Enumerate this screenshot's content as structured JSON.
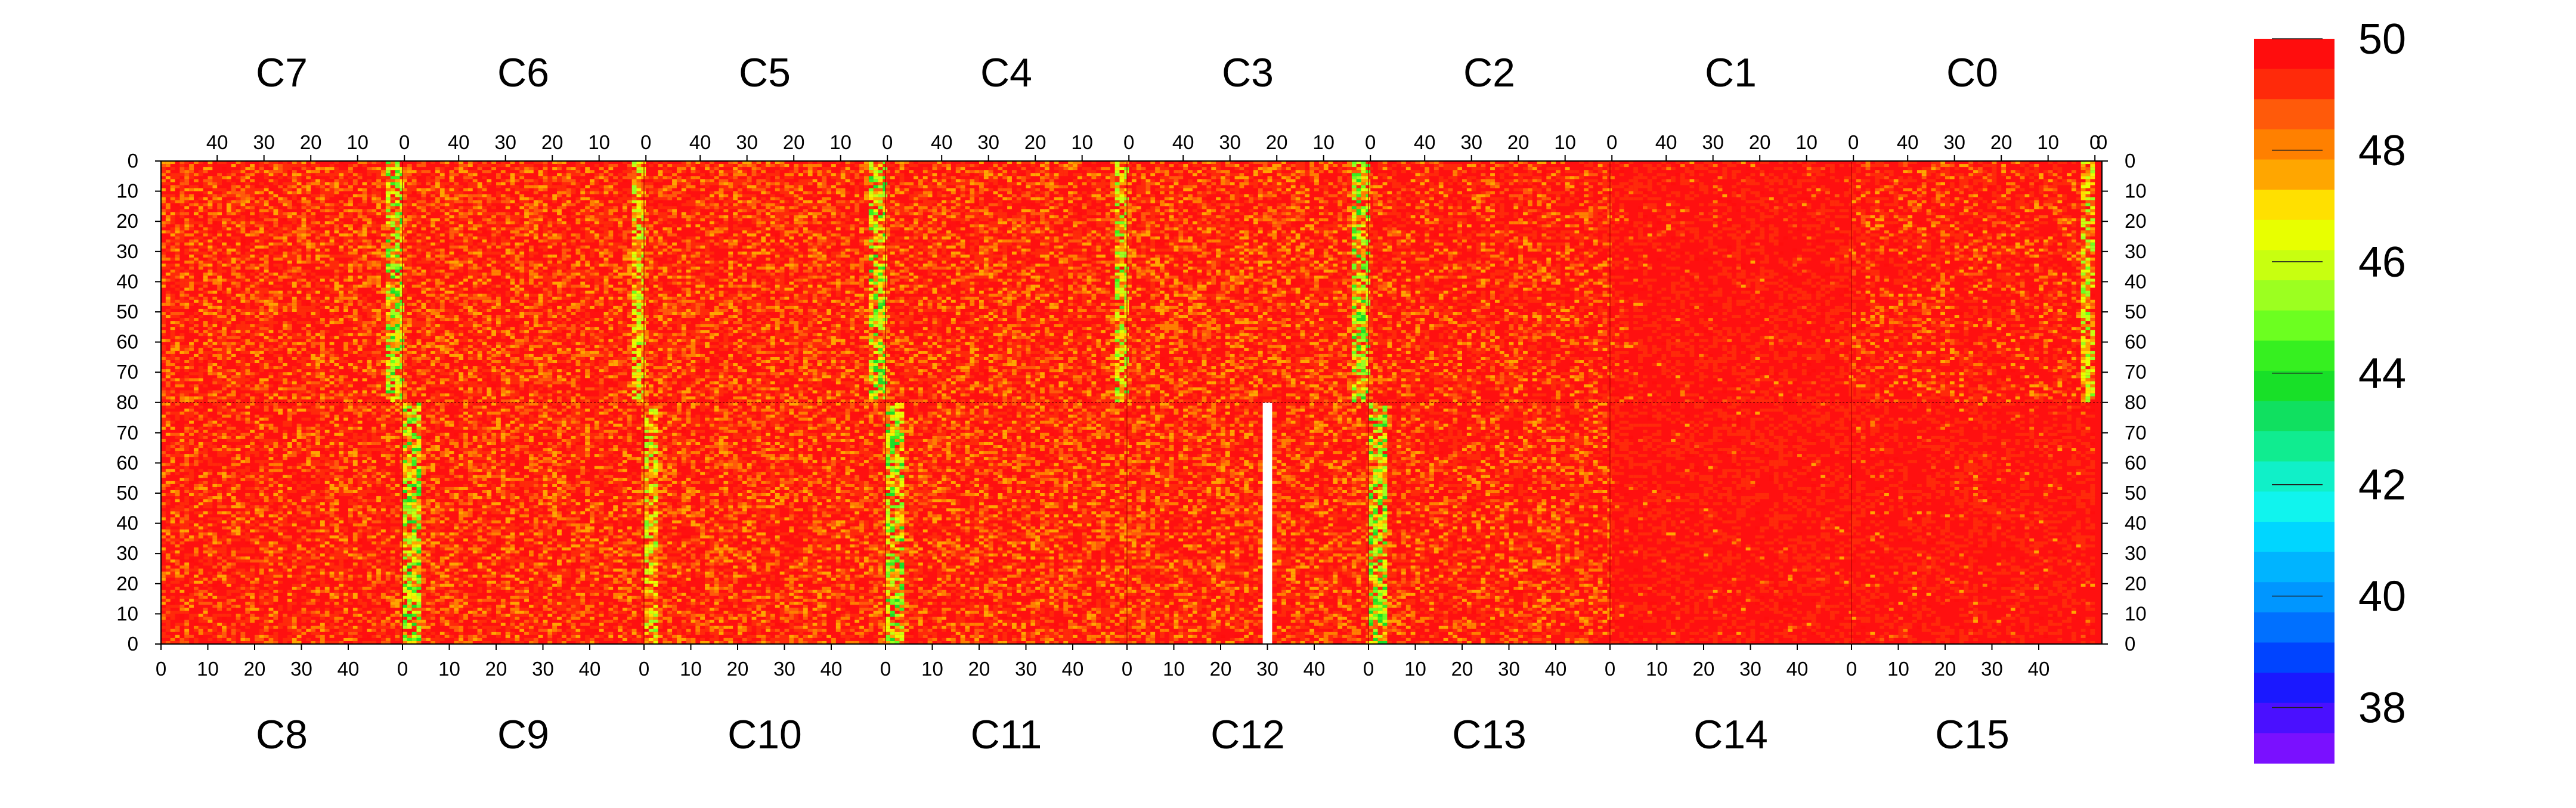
{
  "chart_data": {
    "type": "heatmap",
    "title": "",
    "top_row_chips": [
      "C7",
      "C6",
      "C5",
      "C4",
      "C3",
      "C2",
      "C1",
      "C0"
    ],
    "bottom_row_chips": [
      "C8",
      "C9",
      "C10",
      "C11",
      "C12",
      "C13",
      "C14",
      "C15"
    ],
    "columns_per_chip": 52,
    "rows_per_half": 80,
    "top_x_ticks": [
      "40",
      "30",
      "20",
      "10",
      "0"
    ],
    "bottom_x_ticks": [
      "0",
      "10",
      "20",
      "30",
      "40"
    ],
    "y_ticks_top": [
      "0",
      "10",
      "20",
      "30",
      "40",
      "50",
      "60",
      "70",
      "80"
    ],
    "y_ticks_bottom": [
      "70",
      "60",
      "50",
      "40",
      "30",
      "20",
      "10",
      "0"
    ],
    "zrange": [
      37,
      50
    ],
    "colorbar_ticks": [
      "50",
      "48",
      "46",
      "44",
      "42",
      "40",
      "38"
    ],
    "colorbar_colors": [
      "#ff0d0d",
      "#ff2a0a",
      "#ff5a0a",
      "#ff8000",
      "#ffa600",
      "#ffe000",
      "#e8ff00",
      "#c8ff10",
      "#9cff20",
      "#6cff20",
      "#36f020",
      "#18e028",
      "#10e060",
      "#10ec90",
      "#10f0c8",
      "#10f4ee",
      "#00d6ff",
      "#00b4ff",
      "#0096ff",
      "#0070ff",
      "#0044ff",
      "#1a18ff",
      "#4a10ff",
      "#7a10ff"
    ],
    "chip_summary": [
      {
        "chip": "C7",
        "typical_value": 49.2,
        "low_band_columns": "0-3",
        "low_band_value": 46.8
      },
      {
        "chip": "C6",
        "typical_value": 49.1,
        "low_band_columns": "0-2",
        "low_band_value": 47.5
      },
      {
        "chip": "C5",
        "typical_value": 49.1,
        "low_band_columns": "0-3",
        "low_band_value": 46.8
      },
      {
        "chip": "C4",
        "typical_value": 49.2,
        "low_band_columns": "0-2",
        "low_band_value": 47.2
      },
      {
        "chip": "C3",
        "typical_value": 49.1,
        "low_band_columns": "0-3",
        "low_band_value": 46.8
      },
      {
        "chip": "C2",
        "typical_value": 49.4,
        "low_band_columns": "",
        "low_band_value": 49.4
      },
      {
        "chip": "C1",
        "typical_value": 49.9,
        "low_band_columns": "",
        "low_band_value": 49.9
      },
      {
        "chip": "C0",
        "typical_value": 49.5,
        "low_band_columns": "0-2",
        "low_band_value": 47.5
      },
      {
        "chip": "C8",
        "typical_value": 49.3,
        "low_band_columns": "",
        "low_band_value": 49.3
      },
      {
        "chip": "C9",
        "typical_value": 49.1,
        "low_band_columns": "0-3",
        "low_band_value": 46.8
      },
      {
        "chip": "C10",
        "typical_value": 49.2,
        "low_band_columns": "0-2",
        "low_band_value": 47.5
      },
      {
        "chip": "C11",
        "typical_value": 49.2,
        "low_band_columns": "0-3",
        "low_band_value": 46.9
      },
      {
        "chip": "C12",
        "typical_value": 49.2,
        "low_band_columns": "",
        "low_band_value": 49.2
      },
      {
        "chip": "C13",
        "typical_value": 49.3,
        "low_band_columns": "0-3",
        "low_band_value": 46.8
      },
      {
        "chip": "C14",
        "typical_value": 49.95,
        "low_band_columns": "",
        "low_band_value": 49.95
      },
      {
        "chip": "C15",
        "typical_value": 49.9,
        "low_band_columns": "",
        "low_band_value": 49.9
      }
    ],
    "dead_column": {
      "chip": "C12",
      "column": 29,
      "rows": "0-79"
    },
    "grid": false,
    "legend_placement": "colorbar-right"
  }
}
